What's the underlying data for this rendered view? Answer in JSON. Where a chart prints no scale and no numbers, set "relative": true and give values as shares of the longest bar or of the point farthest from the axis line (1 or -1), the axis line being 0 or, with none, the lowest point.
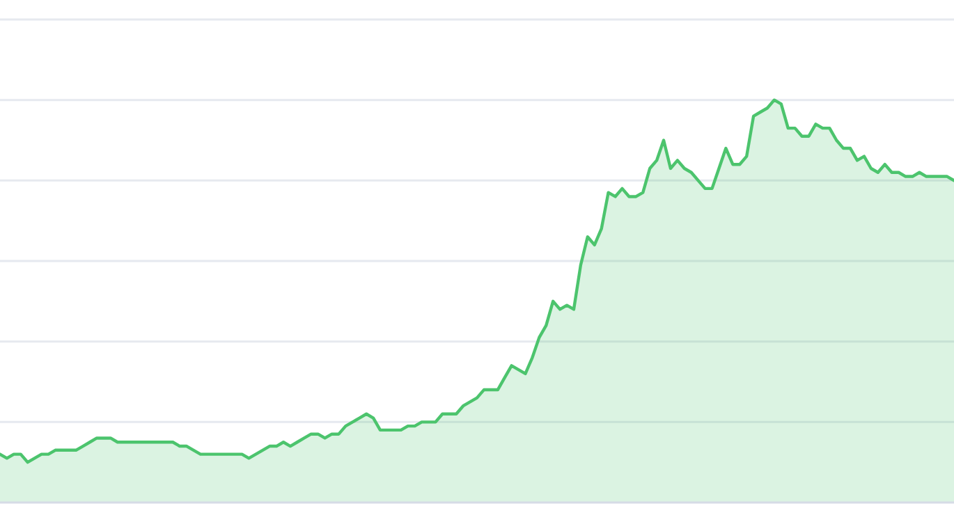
{
  "chart_data": {
    "type": "area",
    "relative": true,
    "grid": "y",
    "categories": [
      null,
      null,
      null,
      null,
      null,
      null,
      null,
      null,
      null,
      null,
      null,
      null,
      null,
      null,
      null,
      null,
      null,
      null,
      null,
      null,
      null,
      null,
      null,
      null,
      null,
      null,
      null,
      null,
      null,
      null,
      null,
      null,
      null,
      null,
      null,
      null,
      null,
      null,
      null,
      null,
      null,
      null,
      null,
      null,
      null,
      null,
      null,
      null,
      null,
      null,
      null,
      null,
      null,
      null,
      null,
      null,
      null,
      null,
      null,
      null,
      null,
      null,
      null,
      null,
      null,
      null,
      null,
      null,
      null,
      null,
      null,
      null,
      null,
      null,
      null,
      null,
      null,
      null,
      null,
      null,
      null,
      null,
      null,
      null,
      null,
      null,
      null,
      null,
      null,
      null,
      null,
      null,
      null,
      null,
      null,
      null,
      null,
      null,
      null,
      null,
      null,
      null,
      null,
      null,
      null,
      null,
      null,
      null,
      null,
      null,
      null,
      null,
      null,
      null,
      null,
      null,
      null,
      null,
      null,
      null,
      null,
      null,
      null,
      null,
      null,
      null,
      null,
      null,
      null,
      null,
      null,
      null,
      null,
      null,
      null,
      null,
      null,
      null,
      null
    ],
    "series": [
      {
        "color": "#4cc46d",
        "values": [
          0.12,
          0.11,
          0.12,
          0.12,
          0.1,
          0.11,
          0.12,
          0.12,
          0.13,
          0.13,
          0.13,
          0.13,
          0.14,
          0.15,
          0.16,
          0.16,
          0.16,
          0.15,
          0.15,
          0.15,
          0.15,
          0.15,
          0.15,
          0.15,
          0.15,
          0.15,
          0.14,
          0.14,
          0.13,
          0.12,
          0.12,
          0.12,
          0.12,
          0.12,
          0.12,
          0.12,
          0.11,
          0.12,
          0.13,
          0.14,
          0.14,
          0.15,
          0.14,
          0.15,
          0.16,
          0.17,
          0.17,
          0.16,
          0.17,
          0.17,
          0.19,
          0.2,
          0.21,
          0.22,
          0.21,
          0.18,
          0.18,
          0.18,
          0.18,
          0.19,
          0.19,
          0.2,
          0.2,
          0.2,
          0.22,
          0.22,
          0.22,
          0.24,
          0.25,
          0.26,
          0.28,
          0.28,
          0.28,
          0.31,
          0.34,
          0.33,
          0.32,
          0.36,
          0.41,
          0.44,
          0.5,
          0.48,
          0.49,
          0.48,
          0.59,
          0.66,
          0.64,
          0.68,
          0.77,
          0.76,
          0.78,
          0.76,
          0.76,
          0.77,
          0.83,
          0.85,
          0.9,
          0.83,
          0.85,
          0.83,
          0.82,
          0.8,
          0.78,
          0.78,
          0.83,
          0.88,
          0.84,
          0.84,
          0.86,
          0.96,
          0.97,
          0.98,
          1.0,
          0.99,
          0.93,
          0.93,
          0.91,
          0.91,
          0.94,
          0.93,
          0.93,
          0.9,
          0.88,
          0.88,
          0.85,
          0.86,
          0.83,
          0.82,
          0.84,
          0.82,
          0.82,
          0.81,
          0.81,
          0.82,
          0.81,
          0.81,
          0.81,
          0.81,
          0.8
        ]
      }
    ]
  }
}
